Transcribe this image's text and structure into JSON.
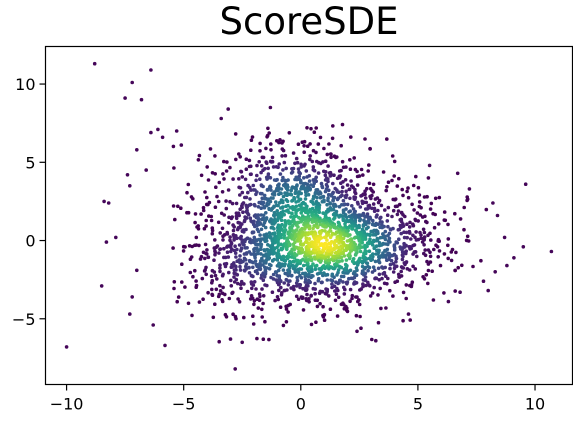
{
  "chart_data": {
    "type": "scatter",
    "title": "ScoreSDE",
    "xlabel": "",
    "ylabel": "",
    "xlim": [
      -10.9,
      11.6
    ],
    "ylim": [
      -9.2,
      12.4
    ],
    "xticks": [
      {
        "value": -10,
        "label": "−10"
      },
      {
        "value": -5,
        "label": "−5"
      },
      {
        "value": 0,
        "label": "0"
      },
      {
        "value": 5,
        "label": "5"
      },
      {
        "value": 10,
        "label": "10"
      }
    ],
    "yticks": [
      {
        "value": -5,
        "label": "−5"
      },
      {
        "value": 0,
        "label": "0"
      },
      {
        "value": 5,
        "label": "5"
      },
      {
        "value": 10,
        "label": "10"
      }
    ],
    "grid": false,
    "legend": "none",
    "colormap": "viridis",
    "color_encoding": "point density",
    "marker_size": "small",
    "series": [
      {
        "description": "dense cloud of ~3000 samples centered near (0.5, 0), spanning x −4 to 7 and y −5 to 6, colored by local density",
        "core_points": [
          {
            "x": 0.5,
            "y": -0.3,
            "density": 1.0
          },
          {
            "x": 0.0,
            "y": 1.5,
            "density": 0.9
          },
          {
            "x": -0.5,
            "y": 3.5,
            "density": 0.8
          },
          {
            "x": 1.5,
            "y": -1.0,
            "density": 0.95
          },
          {
            "x": 3.0,
            "y": 0.0,
            "density": 0.7
          },
          {
            "x": -2.0,
            "y": -1.5,
            "density": 0.6
          }
        ],
        "outliers": [
          {
            "x": -8.8,
            "y": 11.3
          },
          {
            "x": -7.2,
            "y": 10.1
          },
          {
            "x": -7.5,
            "y": 9.1
          },
          {
            "x": -6.4,
            "y": 10.9
          },
          {
            "x": -6.8,
            "y": 9.0
          },
          {
            "x": -10.0,
            "y": -6.8
          },
          {
            "x": -5.8,
            "y": -6.7
          },
          {
            "x": -2.8,
            "y": -8.2
          },
          {
            "x": -8.4,
            "y": 2.5
          },
          {
            "x": -8.5,
            "y": -2.9
          },
          {
            "x": -8.2,
            "y": 2.4
          },
          {
            "x": -8.3,
            "y": -0.1
          },
          {
            "x": -7.4,
            "y": 4.2
          },
          {
            "x": -7.3,
            "y": 3.5
          },
          {
            "x": -7.0,
            "y": 5.8
          },
          {
            "x": -6.1,
            "y": 7.1
          },
          {
            "x": -6.4,
            "y": 6.9
          },
          {
            "x": -5.3,
            "y": 7.0
          },
          {
            "x": -7.3,
            "y": -4.7
          },
          {
            "x": -7.2,
            "y": -3.6
          },
          {
            "x": -7.0,
            "y": -1.9
          },
          {
            "x": -7.9,
            "y": 0.2
          },
          {
            "x": -6.6,
            "y": 4.5
          },
          {
            "x": -6.3,
            "y": -5.4
          },
          {
            "x": -3.0,
            "y": -6.3
          },
          {
            "x": -2.5,
            "y": -6.5
          },
          {
            "x": 2.4,
            "y": -5.8
          },
          {
            "x": 3.2,
            "y": -6.4
          },
          {
            "x": -1.3,
            "y": 8.5
          },
          {
            "x": -3.1,
            "y": 8.4
          },
          {
            "x": -3.4,
            "y": 7.8
          },
          {
            "x": 9.6,
            "y": 3.6
          },
          {
            "x": 10.7,
            "y": -0.7
          },
          {
            "x": 9.5,
            "y": -0.4
          },
          {
            "x": 9.1,
            "y": -1.1
          },
          {
            "x": 8.8,
            "y": -1.6
          },
          {
            "x": 8.7,
            "y": 0.2
          },
          {
            "x": 8.2,
            "y": 2.4
          },
          {
            "x": 8.4,
            "y": 1.6
          },
          {
            "x": 8.0,
            "y": -3.2
          },
          {
            "x": 8.3,
            "y": -2.0
          },
          {
            "x": 7.8,
            "y": -2.6
          },
          {
            "x": 7.2,
            "y": 3.3
          },
          {
            "x": 6.8,
            "y": -3.3
          },
          {
            "x": 6.3,
            "y": -3.9
          },
          {
            "x": 6.7,
            "y": 4.3
          },
          {
            "x": 5.5,
            "y": 4.8
          },
          {
            "x": 4.6,
            "y": -4.7
          },
          {
            "x": -5.1,
            "y": 6.1
          },
          {
            "x": -5.9,
            "y": 6.6
          }
        ]
      }
    ]
  }
}
